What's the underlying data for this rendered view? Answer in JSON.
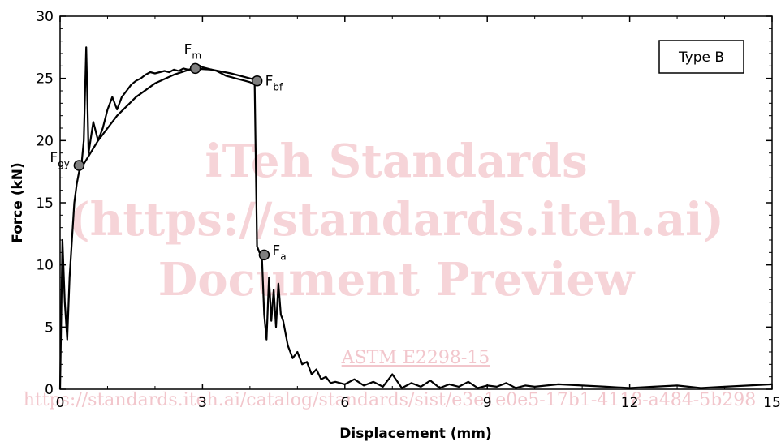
{
  "chart_data": {
    "type": "line",
    "title": "",
    "xlabel": "Displacement (mm)",
    "ylabel": "Force (kN)",
    "xlim": [
      0,
      15
    ],
    "ylim": [
      0,
      30
    ],
    "x_ticks": [
      "0",
      "3",
      "6",
      "9",
      "12",
      "15"
    ],
    "y_ticks": [
      "0",
      "5",
      "10",
      "15",
      "20",
      "25",
      "30"
    ],
    "legend_box": "Type B",
    "legend_position": "top-right",
    "series": [
      {
        "name": "",
        "x": [
          0,
          0.05,
          0.1,
          0.15,
          0.2,
          0.25,
          0.3,
          0.35,
          0.4,
          0.45,
          0.5,
          0.55,
          0.6,
          0.7,
          0.8,
          0.9,
          1.0,
          1.1,
          1.2,
          1.3,
          1.4,
          1.5,
          1.6,
          1.7,
          1.8,
          1.9,
          2.0,
          2.1,
          2.2,
          2.3,
          2.4,
          2.5,
          2.6,
          2.7,
          2.8,
          2.9,
          3.0,
          3.1,
          3.2,
          3.3,
          3.4,
          3.5,
          3.6,
          3.7,
          3.8,
          3.9,
          4.0,
          4.1,
          4.15,
          4.2,
          4.25,
          4.3,
          4.35,
          4.4,
          4.45,
          4.5,
          4.55,
          4.6,
          4.65,
          4.7,
          4.8,
          4.9,
          5.0,
          5.1,
          5.2,
          5.3,
          5.4,
          5.5,
          5.6,
          5.7,
          5.8,
          6.0,
          6.2,
          6.4,
          6.6,
          6.8,
          7.0,
          7.2,
          7.4,
          7.6,
          7.8,
          8.0,
          8.2,
          8.4,
          8.6,
          8.8,
          9.0,
          9.2,
          9.4,
          9.6,
          9.8,
          10.0,
          10.5,
          11.0,
          11.5,
          12.0,
          12.5,
          13.0,
          13.5,
          14.0,
          14.5,
          15.0
        ],
        "y": [
          0,
          12,
          7,
          4,
          9,
          12,
          15,
          16.5,
          17.5,
          18,
          20,
          27.5,
          19,
          21.5,
          20,
          21,
          22.5,
          23.5,
          22.5,
          23.5,
          24,
          24.5,
          24.8,
          25,
          25.3,
          25.5,
          25.4,
          25.5,
          25.6,
          25.5,
          25.7,
          25.6,
          25.8,
          25.7,
          25.8,
          26.1,
          25.9,
          25.8,
          25.7,
          25.6,
          25.4,
          25.2,
          25.1,
          25,
          24.9,
          24.8,
          24.7,
          24.5,
          11.5,
          11,
          10.8,
          6,
          4,
          9,
          5.5,
          8,
          5,
          8.5,
          6,
          5.5,
          3.5,
          2.5,
          3,
          2,
          2.2,
          1.2,
          1.6,
          0.8,
          1.0,
          0.5,
          0.6,
          0.4,
          0.8,
          0.3,
          0.6,
          0.2,
          1.2,
          0.1,
          0.5,
          0.2,
          0.7,
          0.1,
          0.4,
          0.2,
          0.6,
          0.1,
          0.3,
          0.2,
          0.5,
          0.1,
          0.3,
          0.2,
          0.4,
          0.3,
          0.2,
          0.1,
          0.2,
          0.3,
          0.1,
          0.2,
          0.3,
          0.4
        ]
      },
      {
        "name": "",
        "x": [
          0.4,
          0.8,
          1.2,
          1.6,
          2.0,
          2.4,
          2.8,
          3.2,
          3.6,
          4.0,
          4.2
        ],
        "y": [
          17.5,
          20,
          22,
          23.5,
          24.6,
          25.3,
          25.8,
          25.7,
          25.4,
          25.0,
          24.8
        ]
      }
    ],
    "points": [
      {
        "label": "F",
        "sub": "gy",
        "x": 0.4,
        "y": 18.0
      },
      {
        "label": "F",
        "sub": "m",
        "x": 2.85,
        "y": 25.8
      },
      {
        "label": "F",
        "sub": "bf",
        "x": 4.15,
        "y": 24.8
      },
      {
        "label": "F",
        "sub": "a",
        "x": 4.3,
        "y": 10.8
      }
    ]
  },
  "watermark": {
    "line1": "iTeh Standards",
    "line2": "(https://standards.iteh.ai)",
    "line3": "Document Preview",
    "line4": "ASTM E2298-15",
    "line5": "https://standards.iteh.ai/catalog/standards/sist/e3e1e0e5-17b1-4118-a484-5b298"
  },
  "colors": {
    "line": "#000000",
    "marker": "#7f7f7f",
    "watermark": "#f6d4d8"
  }
}
